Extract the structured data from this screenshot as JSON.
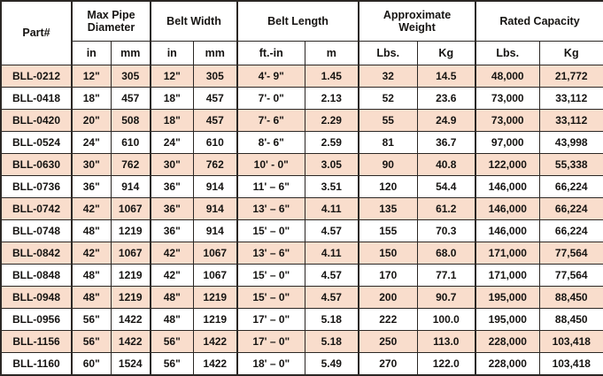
{
  "colors": {
    "row_shade": "#f9ddcc",
    "border": "#2b2724",
    "text": "#161412",
    "background": "#ffffff"
  },
  "table": {
    "header": {
      "part_label": "Part#",
      "groups": [
        {
          "label": "Max Pipe Diameter",
          "units": [
            "in",
            "mm"
          ]
        },
        {
          "label": "Belt Width",
          "units": [
            "in",
            "mm"
          ]
        },
        {
          "label": "Belt Length",
          "units": [
            "ft.-in",
            "m"
          ]
        },
        {
          "label": "Approximate Weight",
          "units": [
            "Lbs.",
            "Kg"
          ]
        },
        {
          "label": "Rated Capacity",
          "units": [
            "Lbs.",
            "Kg"
          ]
        }
      ]
    },
    "rows": [
      [
        "BLL-0212",
        "12\"",
        "305",
        "12\"",
        "305",
        "4'- 9\"",
        "1.45",
        "32",
        "14.5",
        "48,000",
        "21,772"
      ],
      [
        "BLL-0418",
        "18\"",
        "457",
        "18\"",
        "457",
        "7'- 0\"",
        "2.13",
        "52",
        "23.6",
        "73,000",
        "33,112"
      ],
      [
        "BLL-0420",
        "20\"",
        "508",
        "18\"",
        "457",
        "7'- 6\"",
        "2.29",
        "55",
        "24.9",
        "73,000",
        "33,112"
      ],
      [
        "BLL-0524",
        "24\"",
        "610",
        "24\"",
        "610",
        "8'- 6\"",
        "2.59",
        "81",
        "36.7",
        "97,000",
        "43,998"
      ],
      [
        "BLL-0630",
        "30\"",
        "762",
        "30\"",
        "762",
        "10' - 0\"",
        "3.05",
        "90",
        "40.8",
        "122,000",
        "55,338"
      ],
      [
        "BLL-0736",
        "36\"",
        "914",
        "36\"",
        "914",
        "11' – 6\"",
        "3.51",
        "120",
        "54.4",
        "146,000",
        "66,224"
      ],
      [
        "BLL-0742",
        "42\"",
        "1067",
        "36\"",
        "914",
        "13' – 6\"",
        "4.11",
        "135",
        "61.2",
        "146,000",
        "66,224"
      ],
      [
        "BLL-0748",
        "48\"",
        "1219",
        "36\"",
        "914",
        "15' – 0\"",
        "4.57",
        "155",
        "70.3",
        "146,000",
        "66,224"
      ],
      [
        "BLL-0842",
        "42\"",
        "1067",
        "42\"",
        "1067",
        "13' – 6\"",
        "4.11",
        "150",
        "68.0",
        "171,000",
        "77,564"
      ],
      [
        "BLL-0848",
        "48\"",
        "1219",
        "42\"",
        "1067",
        "15' – 0\"",
        "4.57",
        "170",
        "77.1",
        "171,000",
        "77,564"
      ],
      [
        "BLL-0948",
        "48\"",
        "1219",
        "48\"",
        "1219",
        "15' – 0\"",
        "4.57",
        "200",
        "90.7",
        "195,000",
        "88,450"
      ],
      [
        "BLL-0956",
        "56\"",
        "1422",
        "48\"",
        "1219",
        "17' – 0\"",
        "5.18",
        "222",
        "100.0",
        "195,000",
        "88,450"
      ],
      [
        "BLL-1156",
        "56\"",
        "1422",
        "56\"",
        "1422",
        "17' – 0\"",
        "5.18",
        "250",
        "113.0",
        "228,000",
        "103,418"
      ],
      [
        "BLL-1160",
        "60\"",
        "1524",
        "56\"",
        "1422",
        "18' – 0\"",
        "5.49",
        "270",
        "122.0",
        "228,000",
        "103,418"
      ]
    ]
  }
}
